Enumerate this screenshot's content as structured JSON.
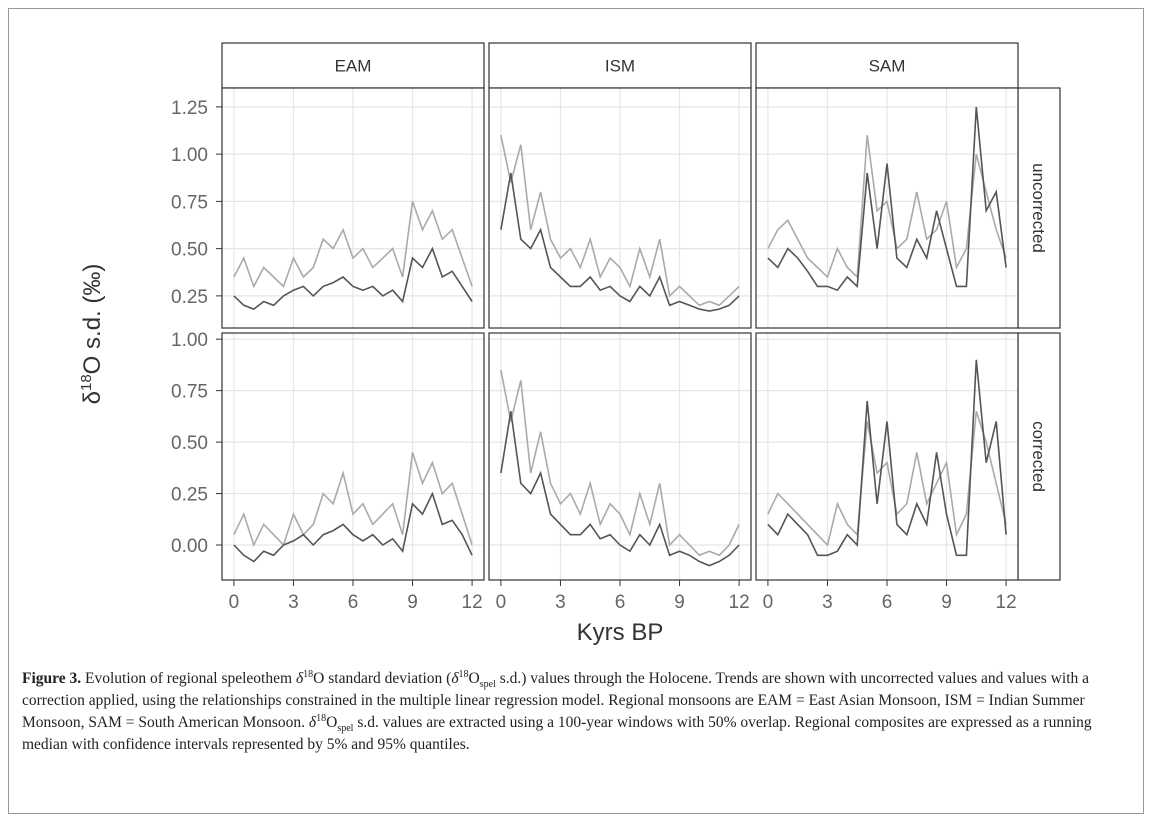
{
  "chart_data": {
    "type": "line",
    "y_label": {
      "prefix": "δ",
      "sup": "18",
      "rest": "O s.d. (‰)"
    },
    "x_label": "Kyrs BP",
    "columns": [
      "EAM",
      "ISM",
      "SAM"
    ],
    "rows": [
      "uncorrected",
      "corrected"
    ],
    "x": [
      0,
      0.5,
      1,
      1.5,
      2,
      2.5,
      3,
      3.5,
      4,
      4.5,
      5,
      5.5,
      6,
      6.5,
      7,
      7.5,
      8,
      8.5,
      9,
      9.5,
      10,
      10.5,
      11,
      11.5,
      12
    ],
    "xlim": [
      -0.6,
      12.6
    ],
    "xticks": [
      0,
      3,
      6,
      9,
      12
    ],
    "row_axes": [
      {
        "ylim": [
          0.08,
          1.35
        ],
        "yticks": [
          {
            "value": 0.25,
            "label": "0.25"
          },
          {
            "value": 0.5,
            "label": "0.50"
          },
          {
            "value": 0.75,
            "label": "0.75"
          },
          {
            "value": 1,
            "label": "1.00"
          },
          {
            "value": 1.25,
            "label": "1.25"
          }
        ]
      },
      {
        "ylim": [
          -0.17,
          1.03
        ],
        "yticks": [
          {
            "value": 0,
            "label": "0.00"
          },
          {
            "value": 0.25,
            "label": "0.25"
          },
          {
            "value": 0.5,
            "label": "0.50"
          },
          {
            "value": 0.75,
            "label": "0.75"
          },
          {
            "value": 1,
            "label": "1.00"
          }
        ]
      }
    ],
    "grid": true,
    "panels": [
      [
        {
          "series": [
            {
              "color": "#aaaaaa",
              "values": [
                0.35,
                0.45,
                0.3,
                0.4,
                0.35,
                0.3,
                0.45,
                0.35,
                0.4,
                0.55,
                0.5,
                0.6,
                0.45,
                0.5,
                0.4,
                0.45,
                0.5,
                0.35,
                0.75,
                0.6,
                0.7,
                0.55,
                0.6,
                0.45,
                0.3
              ]
            },
            {
              "color": "#555555",
              "values": [
                0.25,
                0.2,
                0.18,
                0.22,
                0.2,
                0.25,
                0.28,
                0.3,
                0.25,
                0.3,
                0.32,
                0.35,
                0.3,
                0.28,
                0.3,
                0.25,
                0.28,
                0.22,
                0.45,
                0.4,
                0.5,
                0.35,
                0.38,
                0.3,
                0.22
              ]
            }
          ]
        },
        {
          "series": [
            {
              "color": "#aaaaaa",
              "values": [
                1.1,
                0.85,
                1.05,
                0.6,
                0.8,
                0.55,
                0.45,
                0.5,
                0.4,
                0.55,
                0.35,
                0.45,
                0.4,
                0.3,
                0.5,
                0.35,
                0.55,
                0.25,
                0.3,
                0.25,
                0.2,
                0.22,
                0.2,
                0.25,
                0.3
              ]
            },
            {
              "color": "#555555",
              "values": [
                0.6,
                0.9,
                0.55,
                0.5,
                0.6,
                0.4,
                0.35,
                0.3,
                0.3,
                0.35,
                0.28,
                0.3,
                0.25,
                0.22,
                0.3,
                0.25,
                0.35,
                0.2,
                0.22,
                0.2,
                0.18,
                0.17,
                0.18,
                0.2,
                0.25
              ]
            }
          ]
        },
        {
          "series": [
            {
              "color": "#aaaaaa",
              "values": [
                0.5,
                0.6,
                0.65,
                0.55,
                0.45,
                0.4,
                0.35,
                0.5,
                0.4,
                0.35,
                1.1,
                0.7,
                0.75,
                0.5,
                0.55,
                0.8,
                0.55,
                0.6,
                0.75,
                0.4,
                0.5,
                1.0,
                0.8,
                0.6,
                0.45
              ]
            },
            {
              "color": "#555555",
              "values": [
                0.45,
                0.4,
                0.5,
                0.45,
                0.38,
                0.3,
                0.3,
                0.28,
                0.35,
                0.3,
                0.9,
                0.5,
                0.95,
                0.45,
                0.4,
                0.55,
                0.45,
                0.7,
                0.5,
                0.3,
                0.3,
                1.25,
                0.7,
                0.8,
                0.4
              ]
            }
          ]
        }
      ],
      [
        {
          "series": [
            {
              "color": "#aaaaaa",
              "values": [
                0.05,
                0.15,
                0,
                0.1,
                0.05,
                0,
                0.15,
                0.05,
                0.1,
                0.25,
                0.2,
                0.35,
                0.15,
                0.2,
                0.1,
                0.15,
                0.2,
                0.05,
                0.45,
                0.3,
                0.4,
                0.25,
                0.3,
                0.15,
                0
              ]
            },
            {
              "color": "#555555",
              "values": [
                0,
                -0.05,
                -0.08,
                -0.03,
                -0.05,
                0,
                0.02,
                0.05,
                0,
                0.05,
                0.07,
                0.1,
                0.05,
                0.02,
                0.05,
                0,
                0.03,
                -0.03,
                0.2,
                0.15,
                0.25,
                0.1,
                0.12,
                0.05,
                -0.05
              ]
            }
          ]
        },
        {
          "series": [
            {
              "color": "#aaaaaa",
              "values": [
                0.85,
                0.6,
                0.8,
                0.35,
                0.55,
                0.3,
                0.2,
                0.25,
                0.15,
                0.3,
                0.1,
                0.2,
                0.15,
                0.05,
                0.25,
                0.1,
                0.3,
                0,
                0.05,
                0,
                -0.05,
                -0.03,
                -0.05,
                0,
                0.1
              ]
            },
            {
              "color": "#555555",
              "values": [
                0.35,
                0.65,
                0.3,
                0.25,
                0.35,
                0.15,
                0.1,
                0.05,
                0.05,
                0.1,
                0.03,
                0.05,
                0,
                -0.03,
                0.05,
                0,
                0.1,
                -0.05,
                -0.03,
                -0.05,
                -0.08,
                -0.1,
                -0.08,
                -0.05,
                0
              ]
            }
          ]
        },
        {
          "series": [
            {
              "color": "#aaaaaa",
              "values": [
                0.15,
                0.25,
                0.2,
                0.15,
                0.1,
                0.05,
                0,
                0.2,
                0.1,
                0.05,
                0.6,
                0.35,
                0.4,
                0.15,
                0.2,
                0.45,
                0.2,
                0.3,
                0.4,
                0.05,
                0.15,
                0.65,
                0.5,
                0.3,
                0.1
              ]
            },
            {
              "color": "#555555",
              "values": [
                0.1,
                0.05,
                0.15,
                0.1,
                0.05,
                -0.05,
                -0.05,
                -0.03,
                0.05,
                0,
                0.7,
                0.2,
                0.6,
                0.1,
                0.05,
                0.2,
                0.1,
                0.45,
                0.15,
                -0.05,
                -0.05,
                0.9,
                0.4,
                0.6,
                0.05
              ]
            }
          ]
        }
      ]
    ]
  },
  "caption": {
    "label": "Figure 3.",
    "parts": [
      " Evolution of regional speleothem ",
      "δ",
      "18",
      "O standard deviation (",
      "δ",
      "18",
      "O",
      "spel",
      " s.d.) values through the Holocene. Trends are shown with uncorrected values and values with a correction applied, using the relationships constrained in the multiple linear regression model. Regional monsoons are EAM = East Asian Monsoon, ISM = Indian Summer Monsoon, SAM = South American Monsoon. ",
      "δ",
      "18",
      "O",
      "spel",
      " s.d. values are extracted using a 100-year windows with 50% overlap. Regional composites are expressed as a running median with confidence intervals represented by 5% and 95% quantiles."
    ]
  }
}
